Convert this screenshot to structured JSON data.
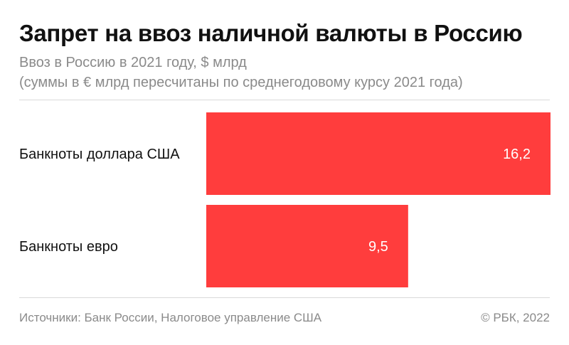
{
  "header": {
    "title": "Запрет на ввоз наличной валюты в Россию",
    "subtitle_line1": "Ввоз в Россию в 2021 году, $ млрд",
    "subtitle_line2": "(суммы в € млрд пересчитаны по среднегодовому курсу 2021 года)"
  },
  "footer": {
    "sources": "Источники: Банк России, Налоговое управление США",
    "copyright": "© РБК, 2022"
  },
  "chart_data": {
    "type": "bar",
    "orientation": "horizontal",
    "categories": [
      "Банкноты доллара США",
      "Банкноты евро"
    ],
    "values": [
      16.2,
      9.5
    ],
    "value_labels": [
      "16,2",
      "9,5"
    ],
    "title": "Запрет на ввоз наличной валюты в Россию",
    "xlabel": "",
    "ylabel": "",
    "xlim": [
      0,
      16.2
    ],
    "grid": false,
    "legend": "none",
    "bar_color": "#ff3d3d"
  }
}
